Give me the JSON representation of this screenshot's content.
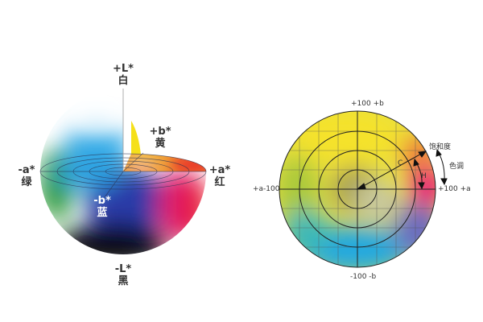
{
  "sphere": {
    "top_axis": "+L*",
    "top_name": "白",
    "bottom_axis": "-L*",
    "bottom_name": "黑",
    "left_axis": "-a*",
    "left_name": "绿",
    "right_axis": "+a*",
    "right_name": "红",
    "yellow_axis": "+b*",
    "yellow_name": "黄",
    "blue_axis": "-b*",
    "blue_name": "蓝"
  },
  "disc": {
    "top": "+100 +b",
    "bottom": "-100 -b",
    "left": "+a-100",
    "right": "+100 +a",
    "saturation": "饱和度",
    "hue": "色调",
    "chroma_symbol": "C",
    "hue_symbol": "H"
  },
  "colors": {
    "red": "#e8203a",
    "yellow": "#f5e52a",
    "green": "#3a9a3a",
    "blue": "#2a3ea8",
    "cyan": "#2aa8e0",
    "magenta": "#e0208a"
  }
}
